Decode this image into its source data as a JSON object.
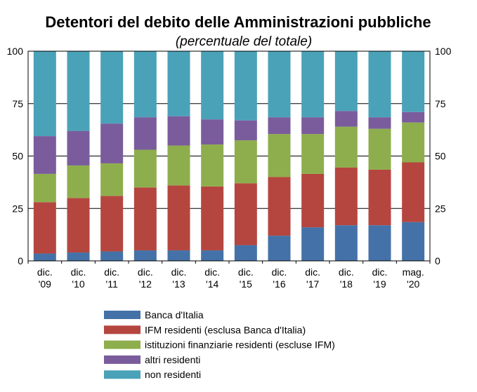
{
  "corner_label": "",
  "chart_data": {
    "type": "bar",
    "stacked": true,
    "title": "Detentori del debito delle Amministrazioni pubbliche",
    "subtitle": "(percentuale del totale)",
    "categories": [
      [
        "dic.",
        "'09"
      ],
      [
        "dic.",
        "'10"
      ],
      [
        "dic.",
        "'11"
      ],
      [
        "dic.",
        "'12"
      ],
      [
        "dic.",
        "'13"
      ],
      [
        "dic.",
        "'14"
      ],
      [
        "dic.",
        "'15"
      ],
      [
        "dic.",
        "'16"
      ],
      [
        "dic.",
        "'17"
      ],
      [
        "dic.",
        "'18"
      ],
      [
        "dic.",
        "'19"
      ],
      [
        "mag.",
        "'20"
      ]
    ],
    "ylim": [
      0,
      100
    ],
    "yticks": [
      0,
      25,
      50,
      75,
      100
    ],
    "grid": "horizontal",
    "legend_position": "bottom",
    "series": [
      {
        "name": "Banca d'Italia",
        "color": "#4472a8",
        "values": [
          3.5,
          4,
          4.5,
          5,
          5,
          5,
          7.5,
          12,
          16,
          17,
          17,
          18.5
        ]
      },
      {
        "name": "IFM residenti (esclusa Banca d'Italia)",
        "color": "#b5463f",
        "values": [
          24.5,
          26,
          26.5,
          30,
          31,
          30.5,
          29.5,
          28,
          25.5,
          27.5,
          26.5,
          28.5
        ]
      },
      {
        "name": "istituzioni finanziarie residenti (escluse IFM)",
        "color": "#8eae4d",
        "values": [
          13.5,
          15.5,
          15.5,
          18,
          19,
          20,
          20.5,
          20.5,
          19,
          19.5,
          19.5,
          19
        ]
      },
      {
        "name": "altri residenti",
        "color": "#7a5c9c",
        "values": [
          18,
          16.5,
          19,
          15.5,
          14,
          12,
          9.5,
          8,
          8,
          7.5,
          5.5,
          5
        ]
      },
      {
        "name": "non residenti",
        "color": "#4aa2b8",
        "values": [
          40.5,
          38,
          34.5,
          31.5,
          31,
          32.5,
          33,
          31.5,
          31.5,
          28.5,
          31.5,
          29
        ]
      }
    ]
  }
}
